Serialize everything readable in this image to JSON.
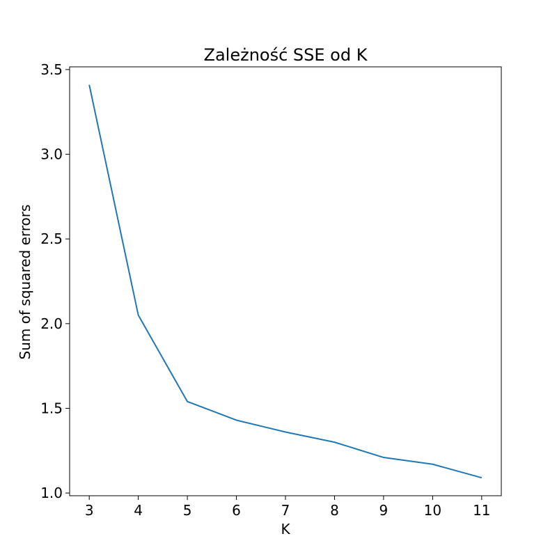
{
  "chart_data": {
    "type": "line",
    "title": "Zależność SSE od K",
    "xlabel": "K",
    "ylabel": "Sum of squared errors",
    "x": [
      3,
      4,
      5,
      6,
      7,
      8,
      9,
      10,
      11
    ],
    "series": [
      {
        "values": [
          3.41,
          2.05,
          1.54,
          1.43,
          1.36,
          1.3,
          1.21,
          1.17,
          1.09
        ],
        "color": "#1f77b4"
      }
    ],
    "xlim": [
      2.6,
      11.4
    ],
    "ylim": [
      0.984,
      3.516
    ],
    "xticks": [
      "3",
      "4",
      "5",
      "6",
      "7",
      "8",
      "9",
      "10",
      "11"
    ],
    "yticks": [
      "1.0",
      "1.5",
      "2.0",
      "2.5",
      "3.0",
      "3.5"
    ],
    "grid": false,
    "legend": "none"
  }
}
